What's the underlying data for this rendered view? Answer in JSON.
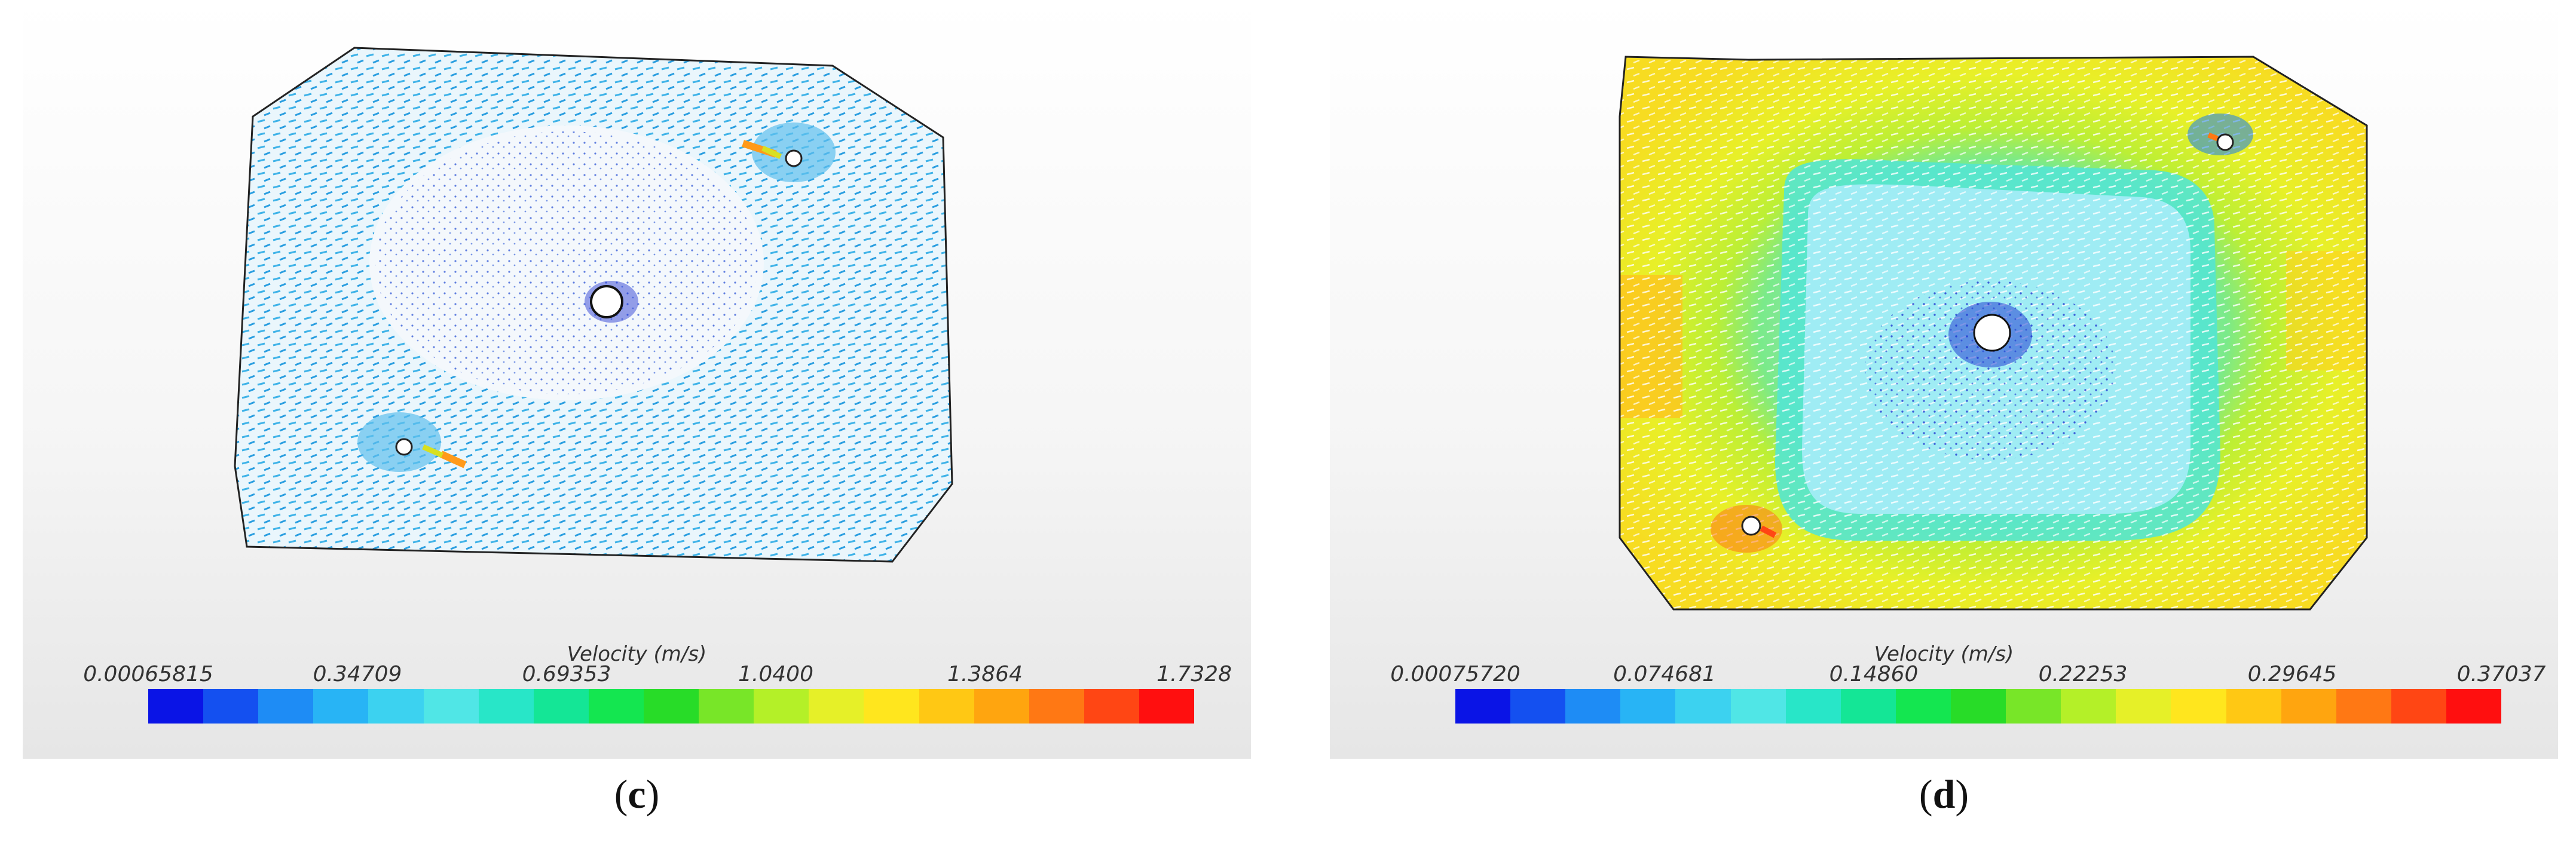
{
  "panels": [
    {
      "caption_open": "(",
      "caption_letter": "c",
      "caption_close": ")",
      "colorbar": {
        "title": "Velocity (m/s)",
        "ticks": [
          "0.00065815",
          "0.34709",
          "0.69353",
          "1.0400",
          "1.3864",
          "1.7328"
        ]
      }
    },
    {
      "caption_open": "(",
      "caption_letter": "d",
      "caption_close": ")",
      "colorbar": {
        "title": "Velocity (m/s)",
        "ticks": [
          "0.00075720",
          "0.074681",
          "0.14860",
          "0.22253",
          "0.29645",
          "0.37037"
        ]
      }
    }
  ],
  "colormap": [
    "#0a14e6",
    "#1450f0",
    "#1e8cf5",
    "#28b4f5",
    "#3cd2f0",
    "#50e6e6",
    "#28e6c8",
    "#14e696",
    "#14e650",
    "#28dc28",
    "#78e628",
    "#b4f028",
    "#e6f028",
    "#ffe61e",
    "#ffc814",
    "#ffa50f",
    "#ff7814",
    "#ff4614",
    "#ff0f0f"
  ]
}
